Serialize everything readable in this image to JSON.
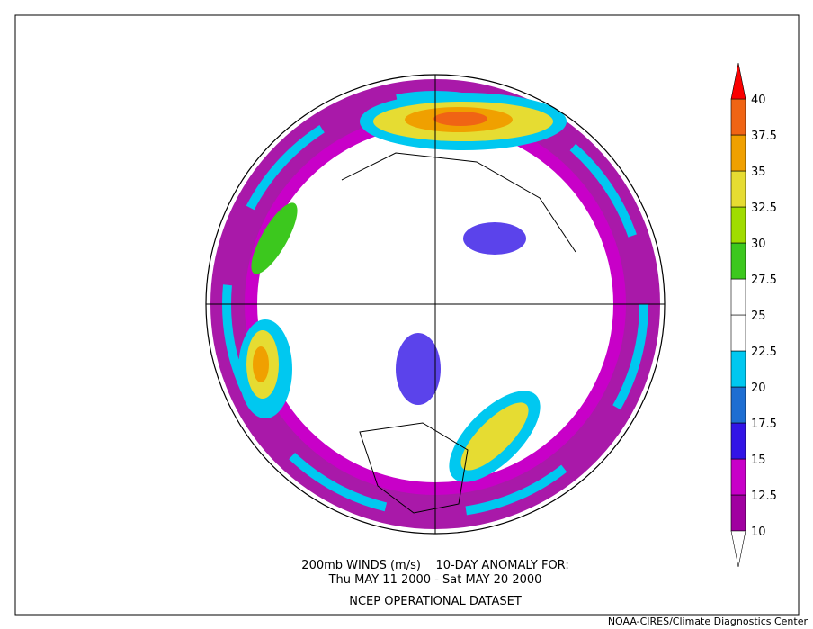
{
  "map": {
    "caption": [
      "200mb WINDS (m/s)    10-DAY ANOMALY FOR:",
      "Thu MAY 11 2000 - Sat MAY 20 2000",
      "NCEP OPERATIONAL DATASET"
    ],
    "credit": "NOAA-CIRES/Climate Diagnostics Center"
  },
  "colorbar": {
    "ticks": [
      10,
      12.5,
      15,
      17.5,
      20,
      22.5,
      25,
      27.5,
      30,
      32.5,
      35,
      37.5,
      40
    ],
    "below_color": "#ffffff",
    "band_colors": [
      "#a000a0",
      "#c800c8",
      "#3214e6",
      "#1e6ed2",
      "#00c8f0",
      "#ffffff",
      "#ffffff",
      "#3cc81e",
      "#a0dc00",
      "#e6dc32",
      "#f0a000",
      "#f06414"
    ],
    "above_color": "#fa0000"
  }
}
